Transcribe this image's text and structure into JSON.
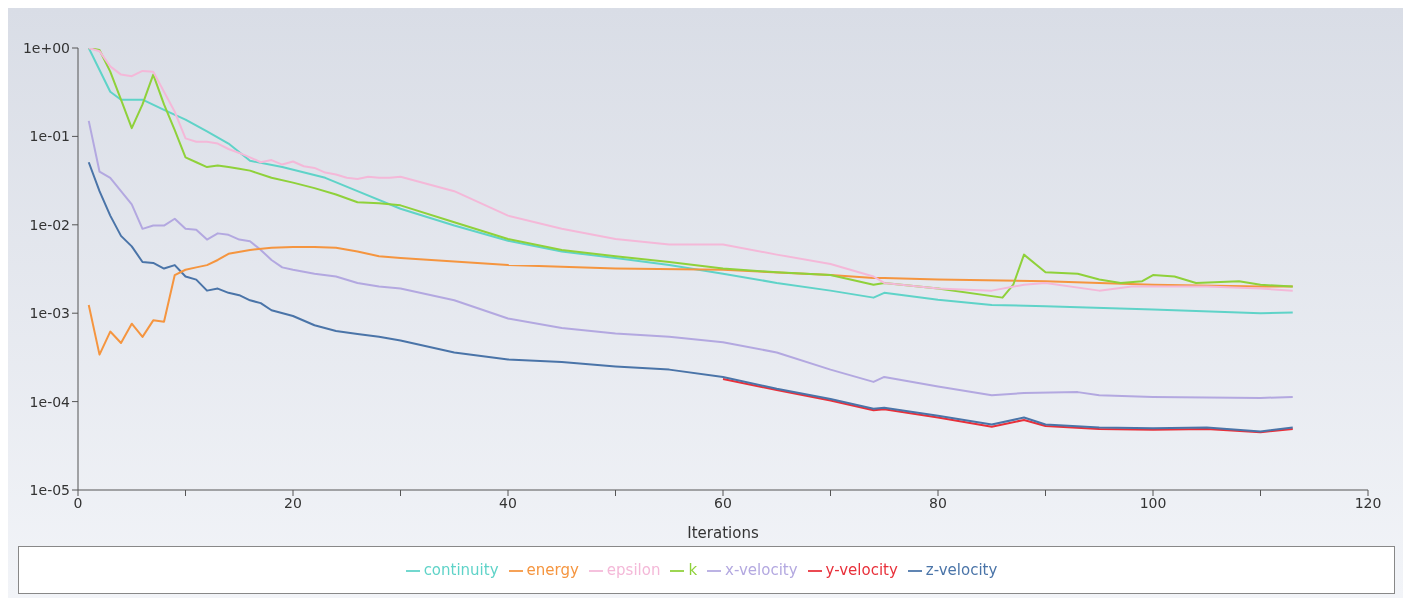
{
  "chart_data": {
    "type": "line",
    "xlabel": "Iterations",
    "log": "y",
    "xlim": [
      0,
      120
    ],
    "xticks": [
      0,
      {
        "value": 10,
        "label": null
      },
      20,
      {
        "value": 30,
        "label": null
      },
      40,
      {
        "value": 50,
        "label": null
      },
      60,
      {
        "value": 70,
        "label": null
      },
      80,
      {
        "value": 90,
        "label": null
      },
      100,
      {
        "value": 110,
        "label": null
      },
      120
    ],
    "ylim": [
      1e-05,
      1
    ],
    "yticks": [
      {
        "value": 1e-05,
        "label": "1e-05"
      },
      {
        "value": 0.0001,
        "label": "1e-04"
      },
      {
        "value": 0.001,
        "label": "1e-03"
      },
      {
        "value": 0.01,
        "label": "1e-02"
      },
      {
        "value": 0.1,
        "label": "1e-01"
      },
      {
        "value": 1,
        "label": "1e+00"
      }
    ],
    "grid": false,
    "legend": "bottom",
    "marker": "none",
    "line_style": "solid",
    "series": [
      {
        "name": "continuity",
        "color": "#5fd3c8",
        "x": [
          1,
          3,
          4,
          6,
          8,
          10,
          12,
          14,
          16,
          19,
          23,
          26,
          30,
          35,
          40,
          45,
          50,
          55,
          60,
          65,
          70,
          74,
          75,
          80,
          85,
          90,
          100,
          110,
          113
        ],
        "values": [
          1.0,
          0.32,
          0.26,
          0.26,
          0.2,
          0.155,
          0.114,
          0.083,
          0.053,
          0.045,
          0.034,
          0.024,
          0.0152,
          0.0098,
          0.0066,
          0.005,
          0.0042,
          0.0035,
          0.0028,
          0.0022,
          0.0018,
          0.0015,
          0.0017,
          0.00142,
          0.00124,
          0.0012,
          0.0011,
          0.001,
          0.00102
        ]
      },
      {
        "name": "x-velocity",
        "color": "#b3a8e0",
        "x": [
          1,
          2,
          3,
          4,
          5,
          6,
          7,
          8,
          9,
          10,
          11,
          12,
          13,
          14,
          15,
          16,
          17,
          18,
          19,
          20,
          22,
          24,
          26,
          28,
          30,
          35,
          40,
          45,
          50,
          55,
          60,
          65,
          70,
          74,
          75,
          80,
          85,
          88,
          93,
          95,
          100,
          110,
          113
        ],
        "values": [
          0.15,
          0.04,
          0.034,
          0.024,
          0.017,
          0.009,
          0.0098,
          0.0098,
          0.0117,
          0.009,
          0.0088,
          0.0068,
          0.008,
          0.0077,
          0.0068,
          0.0065,
          0.0052,
          0.004,
          0.0033,
          0.0031,
          0.0028,
          0.0026,
          0.0022,
          0.002,
          0.0019,
          0.0014,
          0.00087,
          0.00068,
          0.00059,
          0.00054,
          0.00047,
          0.00036,
          0.00023,
          0.000167,
          0.00019,
          0.000148,
          0.000118,
          0.000125,
          0.000128,
          0.000118,
          0.000113,
          0.00011,
          0.000113
        ]
      },
      {
        "name": "y-velocity",
        "color": "#e8303a",
        "x": [
          60,
          65,
          70,
          74,
          75,
          80,
          85,
          88,
          90,
          95,
          100,
          105,
          110,
          113
        ],
        "values": [
          0.00018,
          0.000135,
          0.000103,
          8e-05,
          8.2e-05,
          6.6e-05,
          5.2e-05,
          6.2e-05,
          5.3e-05,
          4.9e-05,
          4.8e-05,
          4.9e-05,
          4.5e-05,
          4.9e-05
        ]
      },
      {
        "name": "z-velocity",
        "color": "#4a74a8",
        "x": [
          1,
          2,
          3,
          4,
          5,
          6,
          7,
          8,
          9,
          10,
          11,
          12,
          13,
          14,
          15,
          16,
          17,
          18,
          20,
          22,
          24,
          26,
          28,
          30,
          35,
          40,
          45,
          50,
          55,
          60,
          65,
          70,
          74,
          75,
          80,
          85,
          88,
          90,
          95,
          100,
          105,
          110,
          113
        ],
        "values": [
          0.051,
          0.024,
          0.0127,
          0.0075,
          0.0057,
          0.0038,
          0.0037,
          0.0032,
          0.0035,
          0.0026,
          0.0024,
          0.0018,
          0.0019,
          0.0017,
          0.0016,
          0.0014,
          0.0013,
          0.00108,
          0.00093,
          0.00073,
          0.00063,
          0.00058,
          0.00054,
          0.00049,
          0.00036,
          0.0003,
          0.00028,
          0.00025,
          0.00023,
          0.00019,
          0.00014,
          0.000107,
          8.3e-05,
          8.5e-05,
          6.9e-05,
          5.5e-05,
          6.6e-05,
          5.5e-05,
          5.1e-05,
          5e-05,
          5.1e-05,
          4.6e-05,
          5.1e-05
        ]
      },
      {
        "name": "energy",
        "color": "#f5953f",
        "x": [
          1,
          2,
          3,
          4,
          5,
          6,
          7,
          8,
          9,
          10,
          11,
          12,
          13,
          14,
          16,
          18,
          20,
          22,
          24,
          26,
          28,
          30,
          40,
          50,
          60,
          70,
          74,
          75,
          80,
          90,
          100,
          110,
          113
        ],
        "values": [
          0.00124,
          0.00034,
          0.00062,
          0.00046,
          0.00076,
          0.00054,
          0.00083,
          0.0008,
          0.0027,
          0.0031,
          0.0033,
          0.0035,
          0.004,
          0.0047,
          0.0052,
          0.0055,
          0.0056,
          0.0056,
          0.0055,
          0.005,
          0.0044,
          0.0042,
          0.0035,
          0.0032,
          0.0031,
          0.0027,
          0.0025,
          0.0025,
          0.0024,
          0.0023,
          0.0021,
          0.002,
          0.002
        ]
      },
      {
        "name": "k",
        "color": "#8fd13a",
        "x": [
          1,
          2,
          3,
          4,
          5,
          6,
          7,
          8,
          9,
          10,
          11,
          12,
          13,
          14,
          15,
          16,
          18,
          20,
          22,
          24,
          26,
          28,
          30,
          35,
          40,
          45,
          50,
          55,
          60,
          65,
          70,
          74,
          75,
          80,
          86,
          87,
          88,
          90,
          93,
          95,
          97,
          99,
          100,
          102,
          104,
          108,
          110,
          113
        ],
        "values": [
          1.0,
          0.95,
          0.54,
          0.26,
          0.124,
          0.23,
          0.5,
          0.23,
          0.118,
          0.058,
          0.051,
          0.045,
          0.047,
          0.045,
          0.043,
          0.041,
          0.034,
          0.03,
          0.026,
          0.022,
          0.018,
          0.0175,
          0.0166,
          0.0107,
          0.0069,
          0.0052,
          0.0044,
          0.0038,
          0.0032,
          0.0029,
          0.0027,
          0.0021,
          0.0022,
          0.0019,
          0.0015,
          0.0021,
          0.0046,
          0.0029,
          0.0028,
          0.0024,
          0.0022,
          0.0023,
          0.0027,
          0.0026,
          0.0022,
          0.0023,
          0.0021,
          0.002
        ]
      },
      {
        "name": "epsilon",
        "color": "#f4b8d8",
        "x": [
          1,
          2,
          3,
          4,
          5,
          6,
          7,
          8,
          9,
          10,
          11,
          12,
          13,
          14,
          15,
          16,
          17,
          18,
          19,
          20,
          21,
          22,
          23,
          24,
          25,
          26,
          27,
          28,
          29,
          30,
          35,
          40,
          45,
          50,
          55,
          60,
          65,
          70,
          74,
          75,
          80,
          85,
          88,
          90,
          95,
          98,
          100,
          105,
          110,
          113
        ],
        "values": [
          1.0,
          0.92,
          0.62,
          0.5,
          0.48,
          0.55,
          0.54,
          0.32,
          0.19,
          0.095,
          0.087,
          0.087,
          0.083,
          0.072,
          0.065,
          0.058,
          0.051,
          0.054,
          0.048,
          0.052,
          0.046,
          0.044,
          0.039,
          0.037,
          0.034,
          0.033,
          0.035,
          0.034,
          0.034,
          0.035,
          0.024,
          0.0127,
          0.009,
          0.0069,
          0.006,
          0.006,
          0.0046,
          0.0036,
          0.0026,
          0.0022,
          0.0019,
          0.0018,
          0.0021,
          0.0022,
          0.0018,
          0.002,
          0.002,
          0.002,
          0.0019,
          0.0018
        ]
      }
    ]
  }
}
